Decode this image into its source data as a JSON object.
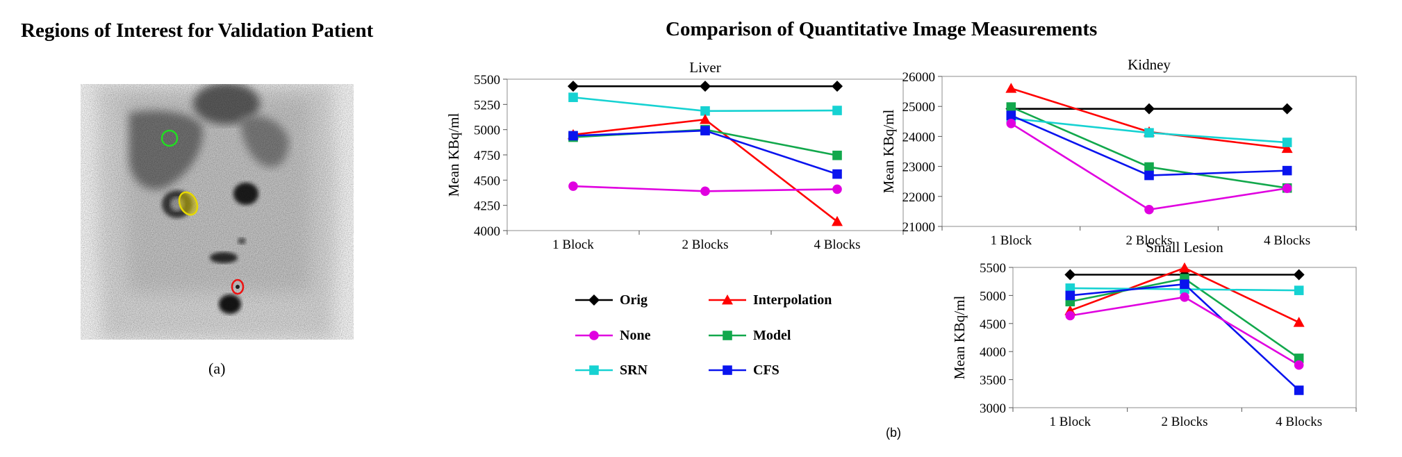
{
  "left_title": "Regions of Interest for Validation Patient",
  "right_title": "Comparison of Quantitative Image Measurements",
  "caption_a": "(a)",
  "caption_b": "(b)",
  "colors": {
    "Orig": "#000000",
    "Interpolation": "#ff0000",
    "None": "#e000e0",
    "Model": "#12a84c",
    "SRN": "#16d2d2",
    "CFS": "#0a14ee",
    "roi_liver": "#22dd22",
    "roi_kidney": "#e6d800",
    "roi_lesion": "#ee1111"
  },
  "legend": [
    {
      "name": "Orig",
      "marker": "diamond"
    },
    {
      "name": "Interpolation",
      "marker": "triangle"
    },
    {
      "name": "None",
      "marker": "circle"
    },
    {
      "name": "Model",
      "marker": "square"
    },
    {
      "name": "SRN",
      "marker": "square"
    },
    {
      "name": "CFS",
      "marker": "square"
    }
  ],
  "chart_data": [
    {
      "type": "line",
      "title": "Liver",
      "ylabel": "Mean KBq/ml",
      "xlabel": "",
      "categories": [
        "1 Block",
        "2 Blocks",
        "4 Blocks"
      ],
      "ylim": [
        4000,
        5500
      ],
      "yticks": [
        4000,
        4250,
        4500,
        4750,
        5000,
        5250,
        5500
      ],
      "series": [
        {
          "name": "Orig",
          "values": [
            5430,
            5430,
            5430
          ]
        },
        {
          "name": "SRN",
          "values": [
            5320,
            5185,
            5190
          ]
        },
        {
          "name": "Interpolation",
          "values": [
            4950,
            5100,
            4090
          ]
        },
        {
          "name": "Model",
          "values": [
            4925,
            5000,
            4745
          ]
        },
        {
          "name": "CFS",
          "values": [
            4940,
            4990,
            4560
          ]
        },
        {
          "name": "None",
          "values": [
            4440,
            4390,
            4410
          ]
        }
      ]
    },
    {
      "type": "line",
      "title": "Kidney",
      "ylabel": "Mean KBq/ml",
      "xlabel": "",
      "categories": [
        "1 Block",
        "2 Blocks",
        "4 Blocks"
      ],
      "ylim": [
        21000,
        26000
      ],
      "yticks": [
        21000,
        22000,
        23000,
        24000,
        25000,
        26000
      ],
      "series": [
        {
          "name": "Orig",
          "values": [
            24920,
            24920,
            24920
          ]
        },
        {
          "name": "Interpolation",
          "values": [
            25600,
            24150,
            23600
          ]
        },
        {
          "name": "Model",
          "values": [
            24980,
            22980,
            22280
          ]
        },
        {
          "name": "SRN",
          "values": [
            24600,
            24120,
            23800
          ]
        },
        {
          "name": "CFS",
          "values": [
            24700,
            22700,
            22860
          ]
        },
        {
          "name": "None",
          "values": [
            24430,
            21560,
            22270
          ]
        }
      ]
    },
    {
      "type": "line",
      "title": "Small Lesion",
      "ylabel": "Mean KBq/ml",
      "xlabel": "",
      "categories": [
        "1 Block",
        "2 Blocks",
        "4 Blocks"
      ],
      "ylim": [
        3000,
        5500
      ],
      "yticks": [
        3000,
        3500,
        4000,
        4500,
        5000,
        5500
      ],
      "series": [
        {
          "name": "Orig",
          "values": [
            5370,
            5370,
            5370
          ]
        },
        {
          "name": "Interpolation",
          "values": [
            4730,
            5490,
            4520
          ]
        },
        {
          "name": "Model",
          "values": [
            4890,
            5300,
            3880
          ]
        },
        {
          "name": "SRN",
          "values": [
            5130,
            5110,
            5090
          ]
        },
        {
          "name": "CFS",
          "values": [
            5000,
            5200,
            3310
          ]
        },
        {
          "name": "None",
          "values": [
            4640,
            4970,
            3760
          ]
        }
      ]
    }
  ]
}
